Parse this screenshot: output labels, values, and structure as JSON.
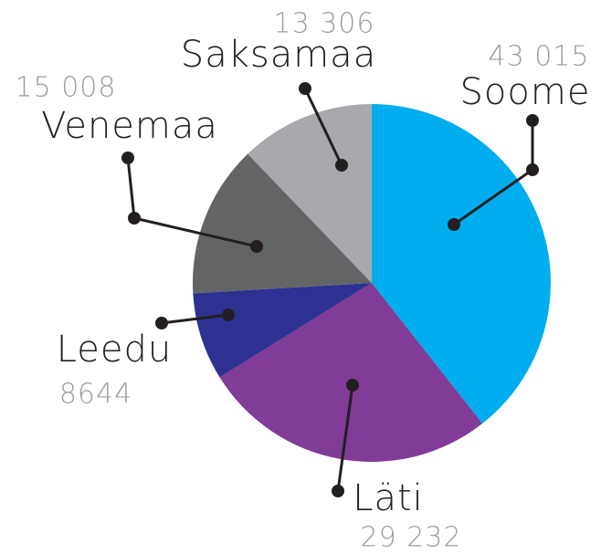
{
  "chart_data": {
    "type": "pie",
    "categories": [
      "Soome",
      "Läti",
      "Leedu",
      "Venemaa",
      "Saksamaa"
    ],
    "values": [
      43015,
      29232,
      8644,
      15008,
      13306
    ],
    "value_labels": [
      "43 015",
      "29 232",
      "8644",
      "15 008",
      "13 306"
    ],
    "colors": [
      "#00aeef",
      "#803c97",
      "#2e3192",
      "#636466",
      "#a7a9ac"
    ]
  }
}
